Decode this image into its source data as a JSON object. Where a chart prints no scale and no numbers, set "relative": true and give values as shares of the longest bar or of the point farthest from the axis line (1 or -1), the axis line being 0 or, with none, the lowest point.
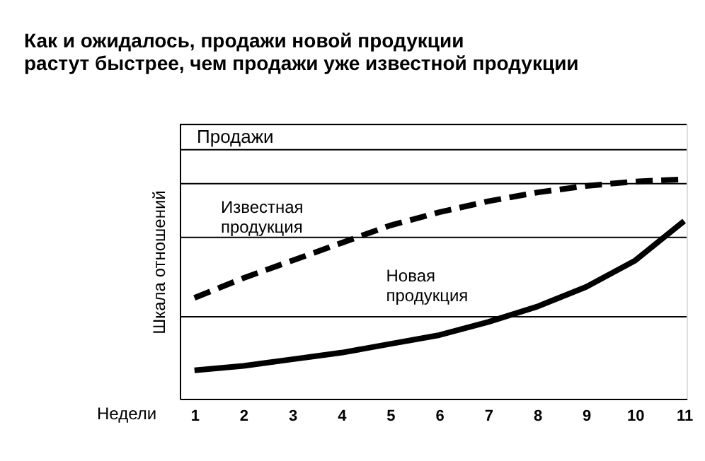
{
  "chart_data": {
    "type": "line",
    "title": "Как и ожидалось, продажи новой продукции\nрастут быстрее, чем продажи уже известной продукции",
    "xlabel": "Недели",
    "ylabel": "Шкала отношений",
    "annotations": [
      "Продажи"
    ],
    "x": [
      1,
      2,
      3,
      4,
      5,
      6,
      7,
      8,
      9,
      10,
      11
    ],
    "xlim": [
      0.7,
      11.05
    ],
    "xticks": [
      1,
      2,
      3,
      4,
      5,
      6,
      7,
      8,
      9,
      10,
      11
    ],
    "relative": true,
    "grid": false,
    "legend": false,
    "marker": "none",
    "series": [
      {
        "name": "Известная продукция",
        "color": "#000000",
        "line_style": "dashed",
        "values": [
          0.46,
          0.55,
          0.63,
          0.71,
          0.79,
          0.85,
          0.9,
          0.94,
          0.97,
          0.99,
          1.0
        ]
      },
      {
        "name": "Новая продукция",
        "color": "#000000",
        "line_style": "solid",
        "values": [
          0.13,
          0.15,
          0.18,
          0.21,
          0.25,
          0.29,
          0.35,
          0.42,
          0.51,
          0.63,
          0.81
        ]
      }
    ],
    "ref_lines": [
      {
        "axis": "y",
        "value": 1.25
      },
      {
        "axis": "y",
        "value": 1.135
      },
      {
        "axis": "y",
        "value": 0.98
      },
      {
        "axis": "y",
        "value": 0.735
      },
      {
        "axis": "y",
        "value": 0.374
      }
    ]
  }
}
